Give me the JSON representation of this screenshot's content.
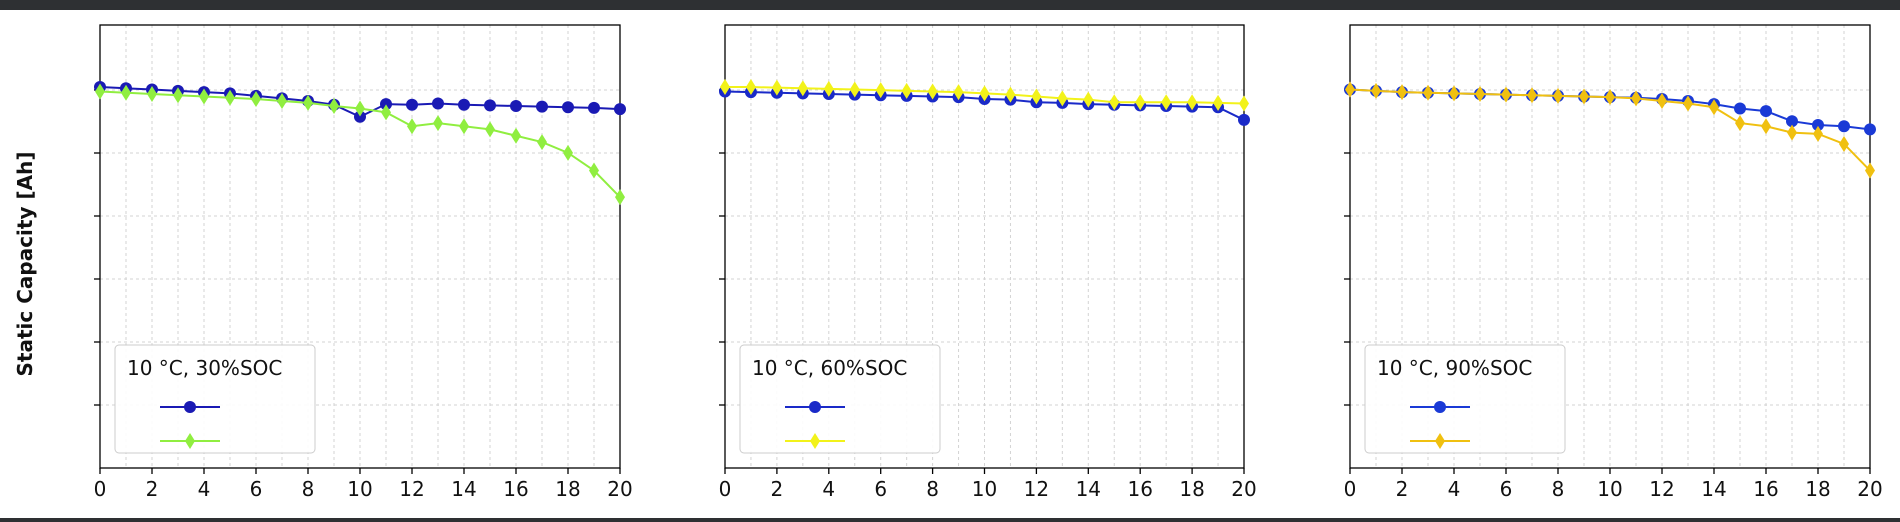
{
  "figure": {
    "ylabel": "Static Capacity [Ah]"
  },
  "colors": {
    "background": "#ffffff",
    "frame": "#2e3033",
    "grid": "#d3d3d3",
    "axis": "#000000"
  },
  "chart_data": [
    {
      "type": "line",
      "legend_title": "10 °C, 30%SOC",
      "legend_position": "bottom-left",
      "grid": true,
      "xlim": [
        0,
        20
      ],
      "xticks": [
        "0",
        "2",
        "4",
        "6",
        "8",
        "10",
        "12",
        "14",
        "16",
        "18",
        "20"
      ],
      "ylim": [
        0,
        7
      ],
      "y_tick_labels_visible": false,
      "series": [
        {
          "color": "#1a1ab4",
          "marker": "circle",
          "x": [
            0,
            1,
            2,
            3,
            4,
            5,
            6,
            7,
            8,
            9,
            10,
            11,
            12,
            13,
            14,
            15,
            16,
            17,
            18,
            19,
            20
          ],
          "y": [
            6.02,
            6.0,
            5.98,
            5.96,
            5.94,
            5.92,
            5.88,
            5.84,
            5.8,
            5.74,
            5.55,
            5.75,
            5.74,
            5.76,
            5.74,
            5.73,
            5.72,
            5.71,
            5.7,
            5.69,
            5.67
          ]
        },
        {
          "color": "#90ee40",
          "marker": "diamond",
          "x": [
            0,
            1,
            2,
            3,
            4,
            5,
            6,
            7,
            8,
            9,
            10,
            11,
            12,
            13,
            14,
            15,
            16,
            17,
            18,
            19,
            20
          ],
          "y": [
            5.95,
            5.93,
            5.91,
            5.89,
            5.87,
            5.85,
            5.83,
            5.8,
            5.77,
            5.72,
            5.68,
            5.62,
            5.4,
            5.45,
            5.4,
            5.35,
            5.25,
            5.15,
            4.98,
            4.7,
            4.28
          ]
        }
      ]
    },
    {
      "type": "line",
      "legend_title": "10 °C, 60%SOC",
      "legend_position": "bottom-left",
      "grid": true,
      "xlim": [
        0,
        20
      ],
      "xticks": [
        "0",
        "2",
        "4",
        "6",
        "8",
        "10",
        "12",
        "14",
        "16",
        "18",
        "20"
      ],
      "ylim": [
        0,
        7
      ],
      "y_tick_labels_visible": false,
      "series": [
        {
          "color": "#1a2ac8",
          "marker": "circle",
          "x": [
            0,
            1,
            2,
            3,
            4,
            5,
            6,
            7,
            8,
            9,
            10,
            11,
            12,
            13,
            14,
            15,
            16,
            17,
            18,
            19,
            20
          ],
          "y": [
            5.95,
            5.94,
            5.93,
            5.92,
            5.91,
            5.9,
            5.89,
            5.88,
            5.87,
            5.86,
            5.83,
            5.82,
            5.78,
            5.77,
            5.75,
            5.74,
            5.73,
            5.72,
            5.71,
            5.7,
            5.5
          ]
        },
        {
          "color": "#f2f21a",
          "marker": "diamond",
          "x": [
            0,
            1,
            2,
            3,
            4,
            5,
            6,
            7,
            8,
            9,
            10,
            11,
            12,
            13,
            14,
            15,
            16,
            17,
            18,
            19,
            20
          ],
          "y": [
            6.02,
            6.02,
            6.01,
            6.0,
            5.99,
            5.98,
            5.97,
            5.96,
            5.95,
            5.94,
            5.92,
            5.9,
            5.87,
            5.84,
            5.82,
            5.78,
            5.78,
            5.78,
            5.78,
            5.77,
            5.76
          ]
        }
      ]
    },
    {
      "type": "line",
      "legend_title": "10 °C, 90%SOC",
      "legend_position": "bottom-left",
      "grid": true,
      "xlim": [
        0,
        20
      ],
      "xticks": [
        "0",
        "2",
        "4",
        "6",
        "8",
        "10",
        "12",
        "14",
        "16",
        "18",
        "20"
      ],
      "ylim": [
        0,
        7
      ],
      "y_tick_labels_visible": false,
      "series": [
        {
          "color": "#1a3ad6",
          "marker": "circle",
          "x": [
            0,
            1,
            2,
            3,
            4,
            5,
            6,
            7,
            8,
            9,
            10,
            11,
            12,
            13,
            14,
            15,
            16,
            17,
            18,
            19,
            20
          ],
          "y": [
            5.98,
            5.96,
            5.94,
            5.93,
            5.92,
            5.91,
            5.9,
            5.89,
            5.88,
            5.87,
            5.86,
            5.85,
            5.83,
            5.8,
            5.75,
            5.68,
            5.64,
            5.48,
            5.42,
            5.4,
            5.35
          ]
        },
        {
          "color": "#f0c010",
          "marker": "diamond",
          "x": [
            0,
            1,
            2,
            3,
            4,
            5,
            6,
            7,
            8,
            9,
            10,
            11,
            12,
            13,
            14,
            15,
            16,
            17,
            18,
            19,
            20
          ],
          "y": [
            5.98,
            5.96,
            5.94,
            5.93,
            5.92,
            5.91,
            5.9,
            5.89,
            5.88,
            5.87,
            5.86,
            5.84,
            5.8,
            5.76,
            5.7,
            5.45,
            5.4,
            5.3,
            5.28,
            5.12,
            4.7
          ]
        }
      ]
    }
  ]
}
